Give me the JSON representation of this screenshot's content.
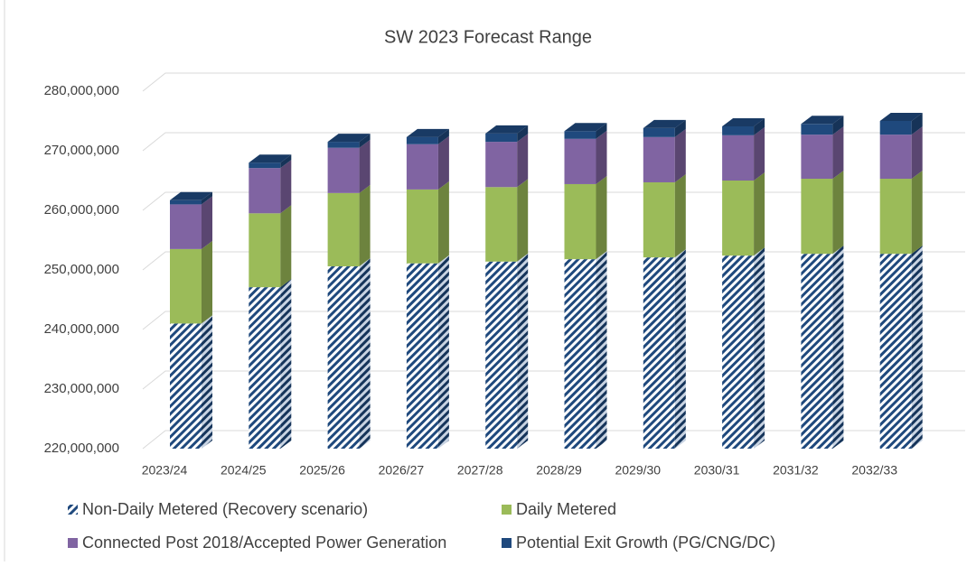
{
  "chart_data": {
    "type": "bar3d_stacked",
    "title": "SW 2023 Forecast Range",
    "categories": [
      "2023/24",
      "2024/25",
      "2025/26",
      "2026/27",
      "2027/28",
      "2028/29",
      "2029/30",
      "2030/31",
      "2031/32",
      "2032/33"
    ],
    "series": [
      {
        "name": "Non-Daily Metered (Recovery scenario)",
        "color": "#1f497d",
        "pattern": "hatch",
        "values": [
          241000000,
          247100000,
          250600000,
          251100000,
          251400000,
          251800000,
          252100000,
          252400000,
          252700000,
          252700000
        ]
      },
      {
        "name": "Daily Metered",
        "color": "#9bbb59",
        "values": [
          12500000,
          12400000,
          12300000,
          12400000,
          12500000,
          12600000,
          12600000,
          12600000,
          12600000,
          12600000
        ]
      },
      {
        "name": "Connected Post 2018/Accepted Power Generation",
        "color": "#8064a2",
        "values": [
          7500000,
          7600000,
          7600000,
          7600000,
          7600000,
          7600000,
          7600000,
          7600000,
          7400000,
          7400000
        ]
      },
      {
        "name": "Potential Exit Growth (PG/CNG/DC)",
        "color": "#1f497d",
        "values": [
          700000,
          900000,
          1000000,
          1200000,
          1400000,
          1300000,
          1500000,
          1500000,
          1800000,
          2300000
        ]
      }
    ],
    "ylim": [
      220000000,
      280000000
    ],
    "yticks": [
      {
        "value": 220000000,
        "label": "220,000,000"
      },
      {
        "value": 230000000,
        "label": "230,000,000"
      },
      {
        "value": 240000000,
        "label": "240,000,000"
      },
      {
        "value": 250000000,
        "label": "250,000,000"
      },
      {
        "value": 260000000,
        "label": "260,000,000"
      },
      {
        "value": 270000000,
        "label": "270,000,000"
      },
      {
        "value": 280000000,
        "label": "280,000,000"
      }
    ],
    "grid": true,
    "legend": "bottom"
  }
}
